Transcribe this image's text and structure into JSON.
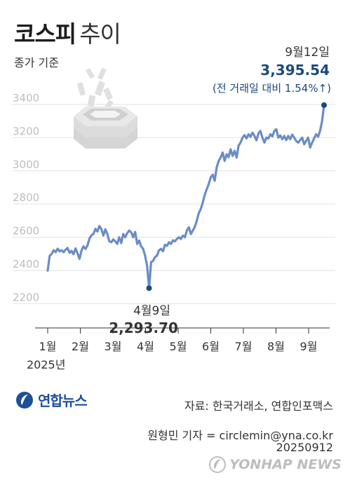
{
  "header": {
    "title_bold": "코스피",
    "title_light": "추이",
    "subtitle": "종가 기준"
  },
  "chart_data": {
    "type": "line",
    "title": "코스피 추이",
    "subtitle": "종가 기준",
    "xlabel": "",
    "ylabel": "",
    "x_ticks": [
      "1월",
      "2월",
      "3월",
      "4월",
      "5월",
      "6월",
      "7월",
      "8월",
      "9월"
    ],
    "x_year_label": "2025년",
    "y_ticks": [
      2200,
      2400,
      2600,
      2800,
      3000,
      3200,
      3400
    ],
    "ylim": [
      2130,
      3480
    ],
    "grid": true,
    "line_color": "#6a8cc7",
    "marker_color": "#1c4a7d",
    "series": [
      {
        "values": [
          2399,
          2488,
          2500,
          2522,
          2510,
          2531,
          2515,
          2522,
          2510,
          2525,
          2536,
          2506,
          2518,
          2498,
          2533,
          2503,
          2470,
          2520,
          2545,
          2530,
          2550,
          2592,
          2612,
          2620,
          2650,
          2635,
          2668,
          2650,
          2610,
          2648,
          2620,
          2575,
          2570,
          2587,
          2575,
          2560,
          2600,
          2565,
          2620,
          2600,
          2625,
          2640,
          2630,
          2600,
          2632,
          2560,
          2580,
          2545,
          2530,
          2488,
          2430,
          2293.7,
          2450,
          2458,
          2481,
          2490,
          2522,
          2530,
          2516,
          2555,
          2548,
          2570,
          2560,
          2582,
          2575,
          2590,
          2600,
          2590,
          2610,
          2600,
          2640,
          2660,
          2620,
          2640,
          2663,
          2700,
          2745,
          2770,
          2810,
          2855,
          2890,
          2920,
          2960,
          2977,
          2940,
          3020,
          3060,
          3080,
          3110,
          3060,
          3100,
          3082,
          3130,
          3090,
          3120,
          3080,
          3150,
          3170,
          3200,
          3215,
          3195,
          3220,
          3205,
          3230,
          3210,
          3184,
          3225,
          3240,
          3200,
          3170,
          3200,
          3195,
          3220,
          3208,
          3240,
          3250,
          3200,
          3213,
          3190,
          3210,
          3185,
          3210,
          3190,
          3218,
          3200,
          3180,
          3170,
          3185,
          3200,
          3160,
          3180,
          3200,
          3140,
          3170,
          3195,
          3220,
          3205,
          3240,
          3300,
          3395.54
        ]
      }
    ],
    "annotations": [
      {
        "date_label": "4월9일",
        "value": 2293.7,
        "value_text": "2,293.70"
      },
      {
        "date_label": "9월12일",
        "value": 3395.54,
        "value_text": "3,395.54",
        "change_text": "(전 거래일 대비 1.54%↑)"
      }
    ]
  },
  "footer": {
    "logo_text": "연합뉴스",
    "source": "자료: 한국거래소, 연합인포맥스",
    "credit": "원형민 기자 = circlemin@yna.co.kr",
    "date_code": "20250912",
    "watermark": "YONHAP NEWS"
  }
}
